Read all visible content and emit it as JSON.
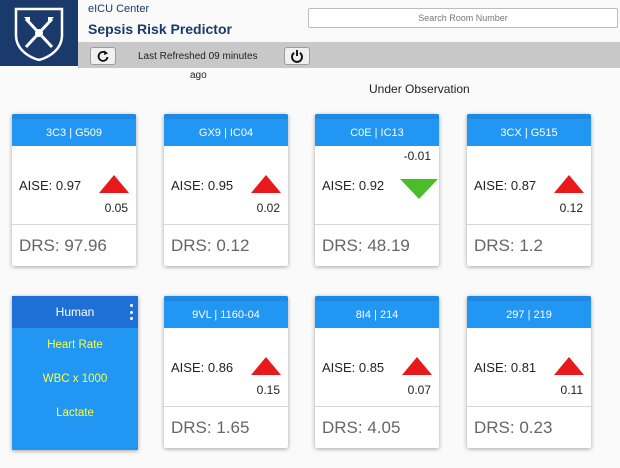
{
  "app": {
    "subtitle": "eICU Center",
    "title": "Sepsis Risk Predictor"
  },
  "search": {
    "placeholder": "Search Room Number",
    "value": ""
  },
  "toolbar": {
    "refreshed_line1": "Last Refreshed 09 minutes",
    "refreshed_line2": "ago"
  },
  "section_title": "Under Observation",
  "colors": {
    "brand": "#1a3a6b",
    "header": "#2196f3",
    "up": "#e8191b",
    "down": "#4bbd2a",
    "human_text": "#ffff3b"
  },
  "human_panel": {
    "title": "Human",
    "items": [
      "Heart Rate",
      "WBC x 1000",
      "Lactate"
    ]
  },
  "patients": [
    {
      "room": "3C3 | G509",
      "aise_label": "AISE: 0.97",
      "trend": "up",
      "delta": "0.05",
      "drs": "DRS: 97.96"
    },
    {
      "room": "GX9 | IC04",
      "aise_label": "AISE: 0.95",
      "trend": "up",
      "delta": "0.02",
      "drs": "DRS: 0.12"
    },
    {
      "room": "C0E | IC13",
      "aise_label": "AISE: 0.92",
      "trend": "down",
      "delta": "-0.01",
      "drs": "DRS: 48.19"
    },
    {
      "room": "3CX | G515",
      "aise_label": "AISE: 0.87",
      "trend": "up",
      "delta": "0.12",
      "drs": "DRS: 1.2"
    },
    {
      "room": "9VL | 1160-04",
      "aise_label": "AISE: 0.86",
      "trend": "up",
      "delta": "0.15",
      "drs": "DRS: 1.65"
    },
    {
      "room": "8I4 | 214",
      "aise_label": "AISE: 0.85",
      "trend": "up",
      "delta": "0.07",
      "drs": "DRS: 4.05"
    },
    {
      "room": "297 | 219",
      "aise_label": "AISE: 0.81",
      "trend": "up",
      "delta": "0.11",
      "drs": "DRS: 0.23"
    }
  ]
}
